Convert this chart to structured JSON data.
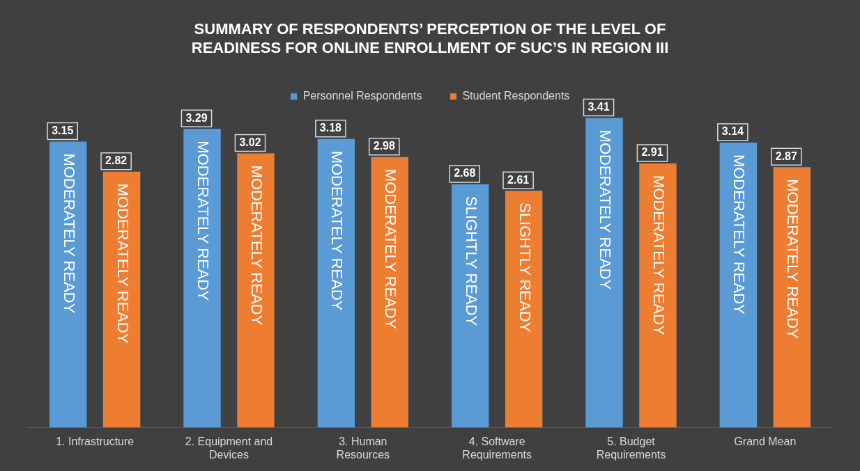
{
  "chart_data": {
    "type": "bar",
    "title": "SUMMARY OF RESPONDENTS’ PERCEPTION OF THE LEVEL OF READINESS FOR ONLINE ENROLLMENT OF SUC’S IN REGION III",
    "categories": [
      "1. Infrastructure",
      "2. Equipment and Devices",
      "3. Human Resources",
      "4. Software Requirements",
      "5. Budget Requirements",
      "Grand Mean"
    ],
    "series": [
      {
        "name": "Personnel Respondents",
        "color": "#5b9bd5",
        "values": [
          3.15,
          3.29,
          3.18,
          2.68,
          3.41,
          3.14
        ]
      },
      {
        "name": "Student Respondents",
        "color": "#ed7d31",
        "values": [
          2.82,
          3.02,
          2.98,
          2.61,
          2.91,
          2.87
        ]
      }
    ],
    "annotations": [
      "MODERATELY READY",
      "MODERATELY READY",
      "MODERATELY READY",
      "SLIGHTLY READY",
      "MODERATELY READY",
      "MODERATELY READY",
      "MODERATELY READY",
      "MODERATELY READY",
      "MODERATELY READY",
      "SLIGHTLY READY",
      "MODERATELY READY",
      "MODERATELY READY"
    ],
    "data_labels": true,
    "legend": "top",
    "grid": false
  }
}
